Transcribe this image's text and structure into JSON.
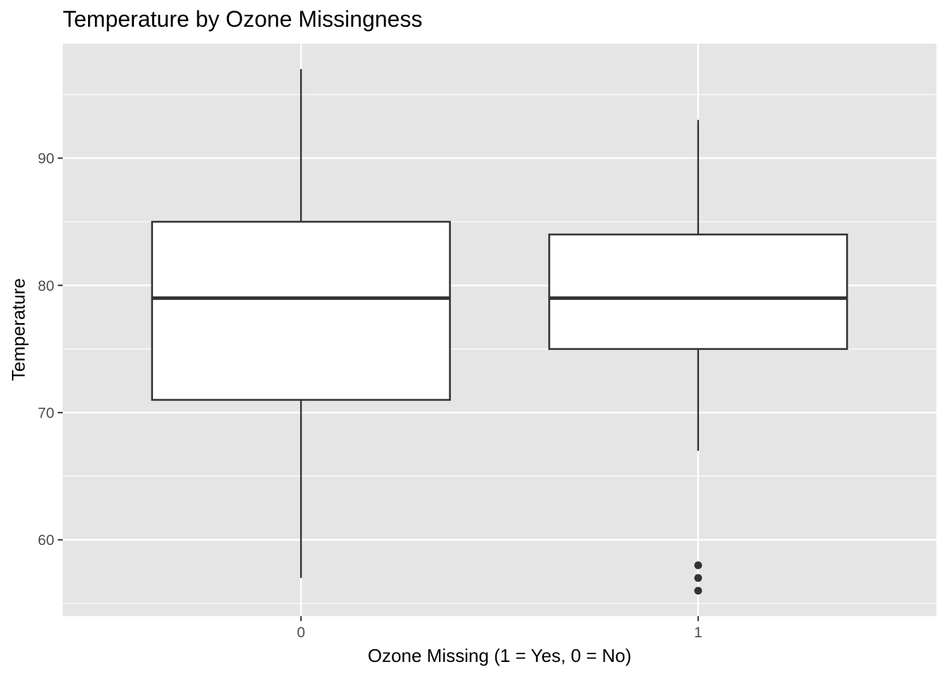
{
  "chart_data": {
    "type": "boxplot",
    "title": "Temperature by Ozone Missingness",
    "xlabel": "Ozone Missing (1 = Yes, 0 = No)",
    "ylabel": "Temperature",
    "categories": [
      "0",
      "1"
    ],
    "ylim": [
      54,
      99
    ],
    "yticks": [
      60,
      70,
      80,
      90
    ],
    "grid": true,
    "boxes": [
      {
        "category": "0",
        "whisker_low": 57,
        "q1": 71,
        "median": 79,
        "q3": 85,
        "whisker_high": 97,
        "outliers": []
      },
      {
        "category": "1",
        "whisker_low": 67,
        "q1": 75,
        "median": 79,
        "q3": 84,
        "whisker_high": 93,
        "outliers": [
          56,
          57,
          58
        ]
      }
    ],
    "colors": {
      "panel_background": "#e5e5e5",
      "grid": "#ffffff",
      "box_fill": "#ffffff",
      "box_line": "#333333",
      "tick_text": "#4d4d4d"
    }
  }
}
